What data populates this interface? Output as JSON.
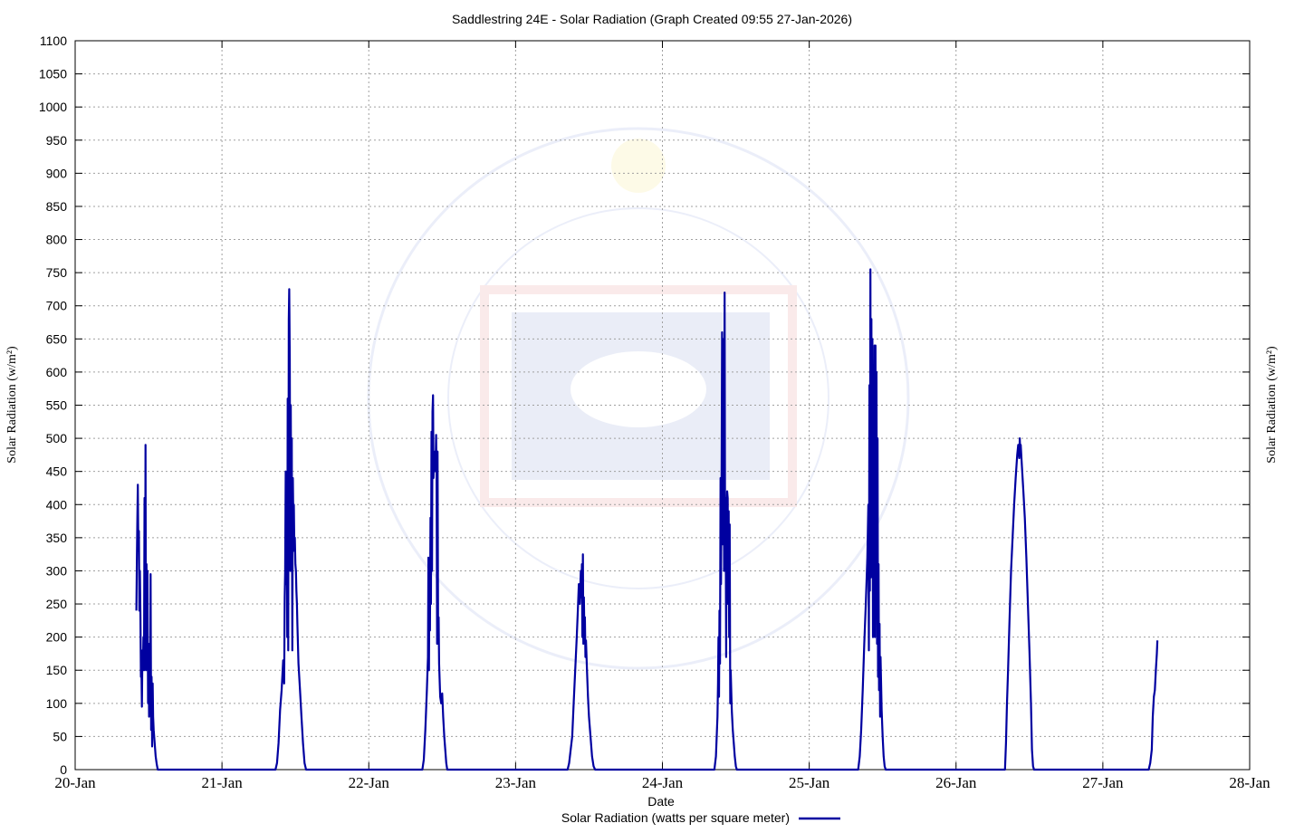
{
  "chart_data": {
    "type": "line",
    "title": "Saddlestring 24E - Solar Radiation (Graph Created 09:55 27-Jan-2026)",
    "xlabel": "Date",
    "ylabel": "Solar Radiation (w/m²)",
    "ylabel_right": "Solar Radiation (w/m²)",
    "ylim": [
      0,
      1100
    ],
    "yticks": [
      0,
      50,
      100,
      150,
      200,
      250,
      300,
      350,
      400,
      450,
      500,
      550,
      600,
      650,
      700,
      750,
      800,
      850,
      900,
      950,
      1000,
      1050,
      1100
    ],
    "xticks": [
      "20-Jan",
      "21-Jan",
      "22-Jan",
      "23-Jan",
      "24-Jan",
      "25-Jan",
      "26-Jan",
      "27-Jan",
      "28-Jan"
    ],
    "grid": true,
    "legend_position": "bottom-center",
    "series": [
      {
        "name": "Solar Radiation (watts per square meter)",
        "color": "#0000a0",
        "points": [
          [
            "20-Jan 10:00",
            240
          ],
          [
            "20-Jan 10:05",
            310
          ],
          [
            "20-Jan 10:10",
            380
          ],
          [
            "20-Jan 10:15",
            430
          ],
          [
            "20-Jan 10:20",
            330
          ],
          [
            "20-Jan 10:25",
            360
          ],
          [
            "20-Jan 10:30",
            240
          ],
          [
            "20-Jan 10:35",
            300
          ],
          [
            "20-Jan 10:40",
            230
          ],
          [
            "20-Jan 10:45",
            140
          ],
          [
            "20-Jan 10:50",
            150
          ],
          [
            "20-Jan 10:55",
            95
          ],
          [
            "20-Jan 11:00",
            180
          ],
          [
            "20-Jan 11:05",
            160
          ],
          [
            "20-Jan 11:10",
            200
          ],
          [
            "20-Jan 11:15",
            150
          ],
          [
            "20-Jan 11:20",
            410
          ],
          [
            "20-Jan 11:25",
            160
          ],
          [
            "20-Jan 11:30",
            490
          ],
          [
            "20-Jan 11:35",
            150
          ],
          [
            "20-Jan 11:40",
            310
          ],
          [
            "20-Jan 11:45",
            160
          ],
          [
            "20-Jan 11:50",
            300
          ],
          [
            "20-Jan 11:55",
            100
          ],
          [
            "20-Jan 12:00",
            190
          ],
          [
            "20-Jan 12:05",
            80
          ],
          [
            "20-Jan 12:10",
            180
          ],
          [
            "20-Jan 12:15",
            90
          ],
          [
            "20-Jan 12:20",
            295
          ],
          [
            "20-Jan 12:25",
            60
          ],
          [
            "20-Jan 12:30",
            140
          ],
          [
            "20-Jan 12:35",
            35
          ],
          [
            "20-Jan 12:40",
            130
          ],
          [
            "20-Jan 12:45",
            80
          ],
          [
            "20-Jan 12:50",
            60
          ],
          [
            "20-Jan 13:00",
            40
          ],
          [
            "20-Jan 13:10",
            20
          ],
          [
            "20-Jan 13:20",
            8
          ],
          [
            "20-Jan 13:30",
            0
          ],
          [
            "21-Jan 08:45",
            0
          ],
          [
            "21-Jan 09:00",
            10
          ],
          [
            "21-Jan 09:15",
            40
          ],
          [
            "21-Jan 09:30",
            90
          ],
          [
            "21-Jan 09:45",
            120
          ],
          [
            "21-Jan 10:00",
            165
          ],
          [
            "21-Jan 10:10",
            130
          ],
          [
            "21-Jan 10:15",
            260
          ],
          [
            "21-Jan 10:20",
            300
          ],
          [
            "21-Jan 10:25",
            450
          ],
          [
            "21-Jan 10:30",
            280
          ],
          [
            "21-Jan 10:35",
            400
          ],
          [
            "21-Jan 10:40",
            200
          ],
          [
            "21-Jan 10:45",
            560
          ],
          [
            "21-Jan 10:50",
            180
          ],
          [
            "21-Jan 10:55",
            680
          ],
          [
            "21-Jan 11:00",
            725
          ],
          [
            "21-Jan 11:05",
            620
          ],
          [
            "21-Jan 11:10",
            300
          ],
          [
            "21-Jan 11:15",
            550
          ],
          [
            "21-Jan 11:20",
            320
          ],
          [
            "21-Jan 11:25",
            500
          ],
          [
            "21-Jan 11:30",
            180
          ],
          [
            "21-Jan 11:35",
            440
          ],
          [
            "21-Jan 11:40",
            380
          ],
          [
            "21-Jan 11:45",
            400
          ],
          [
            "21-Jan 11:50",
            330
          ],
          [
            "21-Jan 11:55",
            350
          ],
          [
            "21-Jan 12:00",
            310
          ],
          [
            "21-Jan 12:05",
            300
          ],
          [
            "21-Jan 12:10",
            270
          ],
          [
            "21-Jan 12:15",
            250
          ],
          [
            "21-Jan 12:20",
            220
          ],
          [
            "21-Jan 12:30",
            160
          ],
          [
            "21-Jan 12:45",
            120
          ],
          [
            "21-Jan 13:00",
            80
          ],
          [
            "21-Jan 13:15",
            40
          ],
          [
            "21-Jan 13:30",
            10
          ],
          [
            "21-Jan 13:45",
            0
          ],
          [
            "22-Jan 08:45",
            0
          ],
          [
            "22-Jan 09:00",
            15
          ],
          [
            "22-Jan 09:15",
            60
          ],
          [
            "22-Jan 09:30",
            120
          ],
          [
            "22-Jan 09:40",
            170
          ],
          [
            "22-Jan 09:45",
            320
          ],
          [
            "22-Jan 09:50",
            150
          ],
          [
            "22-Jan 09:55",
            290
          ],
          [
            "22-Jan 10:00",
            210
          ],
          [
            "22-Jan 10:05",
            380
          ],
          [
            "22-Jan 10:10",
            250
          ],
          [
            "22-Jan 10:15",
            510
          ],
          [
            "22-Jan 10:20",
            300
          ],
          [
            "22-Jan 10:25",
            540
          ],
          [
            "22-Jan 10:30",
            565
          ],
          [
            "22-Jan 10:35",
            440
          ],
          [
            "22-Jan 10:40",
            470
          ],
          [
            "22-Jan 10:45",
            450
          ],
          [
            "22-Jan 10:50",
            480
          ],
          [
            "22-Jan 10:55",
            460
          ],
          [
            "22-Jan 11:00",
            505
          ],
          [
            "22-Jan 11:05",
            440
          ],
          [
            "22-Jan 11:10",
            190
          ],
          [
            "22-Jan 11:15",
            480
          ],
          [
            "22-Jan 11:20",
            200
          ],
          [
            "22-Jan 11:25",
            230
          ],
          [
            "22-Jan 11:30",
            160
          ],
          [
            "22-Jan 11:40",
            110
          ],
          [
            "22-Jan 11:50",
            100
          ],
          [
            "22-Jan 12:00",
            115
          ],
          [
            "22-Jan 12:10",
            80
          ],
          [
            "22-Jan 12:20",
            50
          ],
          [
            "22-Jan 12:30",
            30
          ],
          [
            "22-Jan 12:40",
            10
          ],
          [
            "22-Jan 12:50",
            0
          ],
          [
            "23-Jan 08:30",
            0
          ],
          [
            "23-Jan 08:45",
            10
          ],
          [
            "23-Jan 09:00",
            30
          ],
          [
            "23-Jan 09:15",
            50
          ],
          [
            "23-Jan 09:30",
            100
          ],
          [
            "23-Jan 09:45",
            150
          ],
          [
            "23-Jan 10:00",
            200
          ],
          [
            "23-Jan 10:10",
            240
          ],
          [
            "23-Jan 10:20",
            280
          ],
          [
            "23-Jan 10:30",
            250
          ],
          [
            "23-Jan 10:40",
            300
          ],
          [
            "23-Jan 10:45",
            260
          ],
          [
            "23-Jan 10:50",
            310
          ],
          [
            "23-Jan 10:55",
            200
          ],
          [
            "23-Jan 11:00",
            325
          ],
          [
            "23-Jan 11:05",
            190
          ],
          [
            "23-Jan 11:10",
            260
          ],
          [
            "23-Jan 11:15",
            200
          ],
          [
            "23-Jan 11:20",
            230
          ],
          [
            "23-Jan 11:25",
            170
          ],
          [
            "23-Jan 11:30",
            195
          ],
          [
            "23-Jan 11:40",
            150
          ],
          [
            "23-Jan 11:50",
            110
          ],
          [
            "23-Jan 12:00",
            80
          ],
          [
            "23-Jan 12:15",
            50
          ],
          [
            "23-Jan 12:30",
            20
          ],
          [
            "23-Jan 12:45",
            5
          ],
          [
            "23-Jan 13:00",
            0
          ],
          [
            "24-Jan 08:30",
            0
          ],
          [
            "24-Jan 08:45",
            20
          ],
          [
            "24-Jan 09:00",
            80
          ],
          [
            "24-Jan 09:05",
            130
          ],
          [
            "24-Jan 09:10",
            200
          ],
          [
            "24-Jan 09:15",
            110
          ],
          [
            "24-Jan 09:20",
            240
          ],
          [
            "24-Jan 09:25",
            160
          ],
          [
            "24-Jan 09:30",
            440
          ],
          [
            "24-Jan 09:35",
            280
          ],
          [
            "24-Jan 09:40",
            420
          ],
          [
            "24-Jan 09:45",
            660
          ],
          [
            "24-Jan 09:50",
            340
          ],
          [
            "24-Jan 09:55",
            430
          ],
          [
            "24-Jan 10:00",
            650
          ],
          [
            "24-Jan 10:05",
            300
          ],
          [
            "24-Jan 10:10",
            720
          ],
          [
            "24-Jan 10:15",
            330
          ],
          [
            "24-Jan 10:20",
            410
          ],
          [
            "24-Jan 10:25",
            170
          ],
          [
            "24-Jan 10:30",
            380
          ],
          [
            "24-Jan 10:35",
            420
          ],
          [
            "24-Jan 10:40",
            410
          ],
          [
            "24-Jan 10:45",
            250
          ],
          [
            "24-Jan 10:50",
            390
          ],
          [
            "24-Jan 10:55",
            200
          ],
          [
            "24-Jan 11:00",
            370
          ],
          [
            "24-Jan 11:05",
            100
          ],
          [
            "24-Jan 11:10",
            150
          ],
          [
            "24-Jan 11:20",
            90
          ],
          [
            "24-Jan 11:30",
            60
          ],
          [
            "24-Jan 11:40",
            40
          ],
          [
            "24-Jan 11:50",
            20
          ],
          [
            "24-Jan 12:00",
            5
          ],
          [
            "24-Jan 12:10",
            0
          ],
          [
            "25-Jan 08:00",
            0
          ],
          [
            "25-Jan 08:15",
            20
          ],
          [
            "25-Jan 08:30",
            60
          ],
          [
            "25-Jan 08:45",
            120
          ],
          [
            "25-Jan 09:00",
            190
          ],
          [
            "25-Jan 09:15",
            250
          ],
          [
            "25-Jan 09:30",
            320
          ],
          [
            "25-Jan 09:40",
            400
          ],
          [
            "25-Jan 09:45",
            180
          ],
          [
            "25-Jan 09:50",
            580
          ],
          [
            "25-Jan 09:55",
            270
          ],
          [
            "25-Jan 10:00",
            755
          ],
          [
            "25-Jan 10:05",
            290
          ],
          [
            "25-Jan 10:10",
            680
          ],
          [
            "25-Jan 10:15",
            300
          ],
          [
            "25-Jan 10:20",
            650
          ],
          [
            "25-Jan 10:25",
            200
          ],
          [
            "25-Jan 10:30",
            600
          ],
          [
            "25-Jan 10:35",
            230
          ],
          [
            "25-Jan 10:40",
            640
          ],
          [
            "25-Jan 10:45",
            200
          ],
          [
            "25-Jan 10:50",
            640
          ],
          [
            "25-Jan 10:55",
            230
          ],
          [
            "25-Jan 11:00",
            600
          ],
          [
            "25-Jan 11:05",
            190
          ],
          [
            "25-Jan 11:10",
            500
          ],
          [
            "25-Jan 11:15",
            140
          ],
          [
            "25-Jan 11:20",
            310
          ],
          [
            "25-Jan 11:25",
            120
          ],
          [
            "25-Jan 11:30",
            220
          ],
          [
            "25-Jan 11:35",
            80
          ],
          [
            "25-Jan 11:40",
            170
          ],
          [
            "25-Jan 11:50",
            90
          ],
          [
            "25-Jan 12:00",
            50
          ],
          [
            "25-Jan 12:10",
            20
          ],
          [
            "25-Jan 12:20",
            5
          ],
          [
            "25-Jan 12:30",
            0
          ],
          [
            "26-Jan 08:00",
            0
          ],
          [
            "26-Jan 08:10",
            40
          ],
          [
            "26-Jan 08:20",
            100
          ],
          [
            "26-Jan 08:30",
            150
          ],
          [
            "26-Jan 08:45",
            230
          ],
          [
            "26-Jan 09:00",
            300
          ],
          [
            "26-Jan 09:15",
            350
          ],
          [
            "26-Jan 09:30",
            400
          ],
          [
            "26-Jan 09:45",
            440
          ],
          [
            "26-Jan 10:00",
            475
          ],
          [
            "26-Jan 10:10",
            490
          ],
          [
            "26-Jan 10:20",
            470
          ],
          [
            "26-Jan 10:25",
            500
          ],
          [
            "26-Jan 10:30",
            480
          ],
          [
            "26-Jan 10:35",
            490
          ],
          [
            "26-Jan 10:45",
            460
          ],
          [
            "26-Jan 11:00",
            420
          ],
          [
            "26-Jan 11:15",
            380
          ],
          [
            "26-Jan 11:30",
            320
          ],
          [
            "26-Jan 11:45",
            250
          ],
          [
            "26-Jan 12:00",
            180
          ],
          [
            "26-Jan 12:15",
            100
          ],
          [
            "26-Jan 12:25",
            30
          ],
          [
            "26-Jan 12:35",
            5
          ],
          [
            "26-Jan 12:45",
            0
          ],
          [
            "27-Jan 07:30",
            0
          ],
          [
            "27-Jan 07:45",
            10
          ],
          [
            "27-Jan 08:00",
            30
          ],
          [
            "27-Jan 08:10",
            80
          ],
          [
            "27-Jan 08:20",
            110
          ],
          [
            "27-Jan 08:30",
            120
          ],
          [
            "27-Jan 08:40",
            150
          ],
          [
            "27-Jan 08:50",
            175
          ],
          [
            "27-Jan 08:55",
            195
          ]
        ]
      }
    ]
  }
}
